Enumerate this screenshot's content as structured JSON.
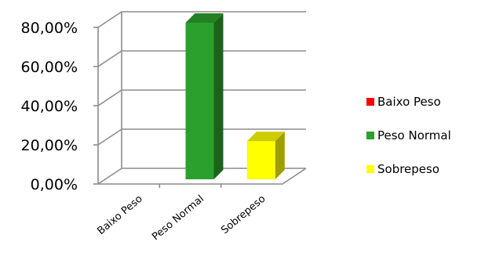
{
  "chart_data": {
    "type": "bar",
    "categories": [
      "Baixo Peso",
      "Peso Normal",
      "Sobrepeso"
    ],
    "values": [
      0.0,
      80.0,
      19.5
    ],
    "colors": [
      "#ff0000",
      "#2ca02c",
      "#ffff00"
    ],
    "y_ticks": [
      "0,00%",
      "20,00%",
      "40,00%",
      "60,00%",
      "80,00%"
    ],
    "ylim": [
      0,
      80
    ],
    "grid": true,
    "legend_position": "right",
    "legend": [
      {
        "label": "Baixo Peso",
        "color": "#ff0000"
      },
      {
        "label": "Peso Normal",
        "color": "#2ca02c"
      },
      {
        "label": "Sobrepeso",
        "color": "#ffff00"
      }
    ]
  }
}
